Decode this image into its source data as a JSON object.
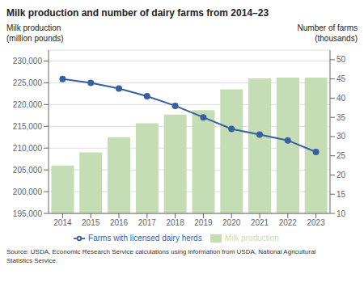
{
  "chart_data": {
    "type": "bar",
    "title": "Milk production and number of dairy farms from 2014–23",
    "ylabel": "Milk production\n(million pounds)",
    "y2label": "Number of farms\n(thousands)",
    "annotations": [
      "Source: USDA, Economic Research Service calculations using information from USDA, National Agricultural\nStatistics Service."
    ],
    "categories": [
      "2014",
      "2015",
      "2016",
      "2017",
      "2018",
      "2019",
      "2020",
      "2021",
      "2022",
      "2023"
    ],
    "series": [
      {
        "name": "Milk production",
        "type": "bar",
        "color": "#c5ddb4",
        "values": [
          206000,
          209000,
          212500,
          215700,
          217700,
          218700,
          223500,
          226000,
          226200,
          226200
        ]
      },
      {
        "name": "Farms with licensed dairy herds",
        "type": "line",
        "axis": "y2",
        "color": "#3a5fa0",
        "marker": "circle",
        "values": [
          45.0,
          44.0,
          42.5,
          40.5,
          38.0,
          35.0,
          32.0,
          30.5,
          29.0,
          26.0
        ]
      }
    ],
    "ylim": [
      195000,
      232500
    ],
    "yticks": [
      {
        "value": 195000,
        "label": "195,000"
      },
      {
        "value": 200000,
        "label": "200,000"
      },
      {
        "value": 205000,
        "label": "205,000"
      },
      {
        "value": 210000,
        "label": "210,000"
      },
      {
        "value": 215000,
        "label": "215,000"
      },
      {
        "value": 220000,
        "label": "220,000"
      },
      {
        "value": 225000,
        "label": "225,000"
      },
      {
        "value": 230000,
        "label": "230,000"
      }
    ],
    "y2lim": [
      10,
      52.5
    ],
    "y2ticks": [
      10,
      15,
      20,
      25,
      30,
      35,
      40,
      45,
      50
    ],
    "grid": true,
    "legend": "bottom"
  }
}
